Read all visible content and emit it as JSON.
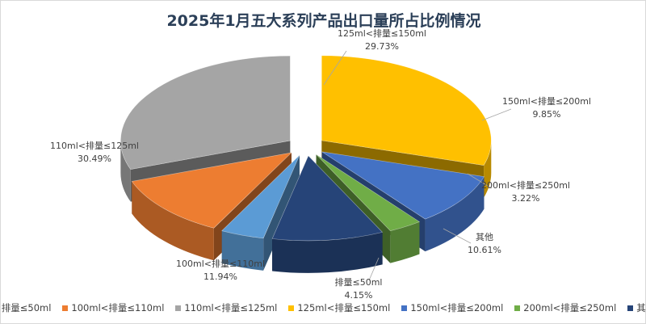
{
  "chart_data": {
    "type": "pie",
    "title": "2025年1月五大系列产品出口量所占比例情况",
    "style": "3d-exploded",
    "categories": [
      "排量≤50ml",
      "100ml<排量≤110ml",
      "110ml<排量≤125ml",
      "125ml<排量≤150ml",
      "150ml<排量≤200ml",
      "200ml<排量≤250ml",
      "其他"
    ],
    "values": [
      4.15,
      11.94,
      30.49,
      29.73,
      9.85,
      3.22,
      10.61
    ],
    "value_labels": [
      "4.15%",
      "11.94%",
      "30.49%",
      "29.73%",
      "9.85%",
      "3.22%",
      "10.61%"
    ],
    "colors": [
      "#5b9bd5",
      "#ed7d31",
      "#a5a5a5",
      "#ffc000",
      "#4472c4",
      "#70ad47",
      "#264478"
    ],
    "legend_position": "bottom"
  }
}
